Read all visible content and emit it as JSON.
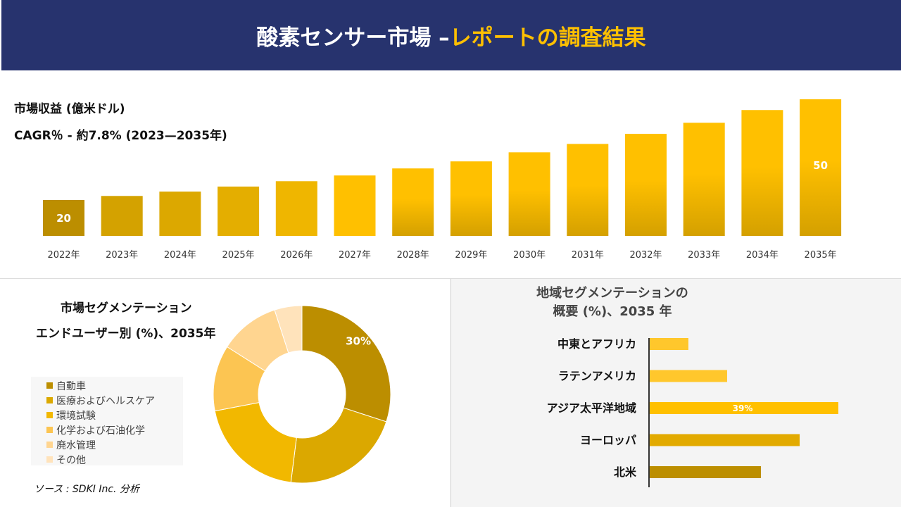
{
  "header": {
    "title_main": "酸素センサー市場 –",
    "title_accent": "レポートの調査結果"
  },
  "revenue": {
    "label": "市場収益 (億米ドル)",
    "cagr": "CAGR％ - 約7.8% (2023—2035年)"
  },
  "chart_data": [
    {
      "type": "bar",
      "categories": [
        "2022年",
        "2023年",
        "2024年",
        "2025年",
        "2026年",
        "2027年",
        "2028年",
        "2029年",
        "2030年",
        "2031年",
        "2032年",
        "2033年",
        "2034年",
        "2035年"
      ],
      "values": [
        20,
        21.2,
        22.5,
        24,
        25.6,
        27.3,
        29.4,
        31.5,
        34.2,
        36.7,
        39.7,
        43,
        46.8,
        50
      ],
      "data_labels": {
        "0": "20",
        "13": "50"
      },
      "ylim": [
        9.3,
        50
      ],
      "grid": false,
      "colors": [
        "#bc8e00",
        "#d4a200",
        "#dca800",
        "#e4ae00",
        "#efb600",
        "#ffc000",
        "#ffc000",
        "#ffc000",
        "#ffc000",
        "#ffc000",
        "#ffc000",
        "#ffc000",
        "#ffc000",
        "#ffc000"
      ]
    },
    {
      "type": "pie",
      "title_line1": "市場セグメンテーション",
      "title_line2": "エンドユーザー別 (%)、2035年",
      "categories": [
        "自動車",
        "医療およびヘルスケア",
        "環境試験",
        "化学および石油化学",
        "廃水管理",
        "その他"
      ],
      "values": [
        30,
        22,
        20,
        12,
        11,
        5
      ],
      "colors": [
        "#bc8e00",
        "#dba800",
        "#f2b800",
        "#fcc552",
        "#ffd590",
        "#ffe3bb"
      ],
      "data_labels": {
        "0": "30%"
      },
      "legend": "left"
    },
    {
      "type": "bar",
      "orientation": "horizontal",
      "title_line1": "地域セグメンテーションの",
      "title_line2": "概要 (%)、2035 年",
      "categories": [
        "中東とアフリカ",
        "ラテンアメリカ",
        "アジア太平洋地域",
        "ヨーロッパ",
        "北米"
      ],
      "values": [
        8,
        16,
        39,
        31,
        23
      ],
      "colors": [
        "#ffc72c",
        "#ffc72c",
        "#ffc000",
        "#e2aa00",
        "#bc8e00"
      ],
      "data_labels": {
        "2": "39%"
      }
    }
  ],
  "source": "ソース : SDKI Inc. 分析"
}
